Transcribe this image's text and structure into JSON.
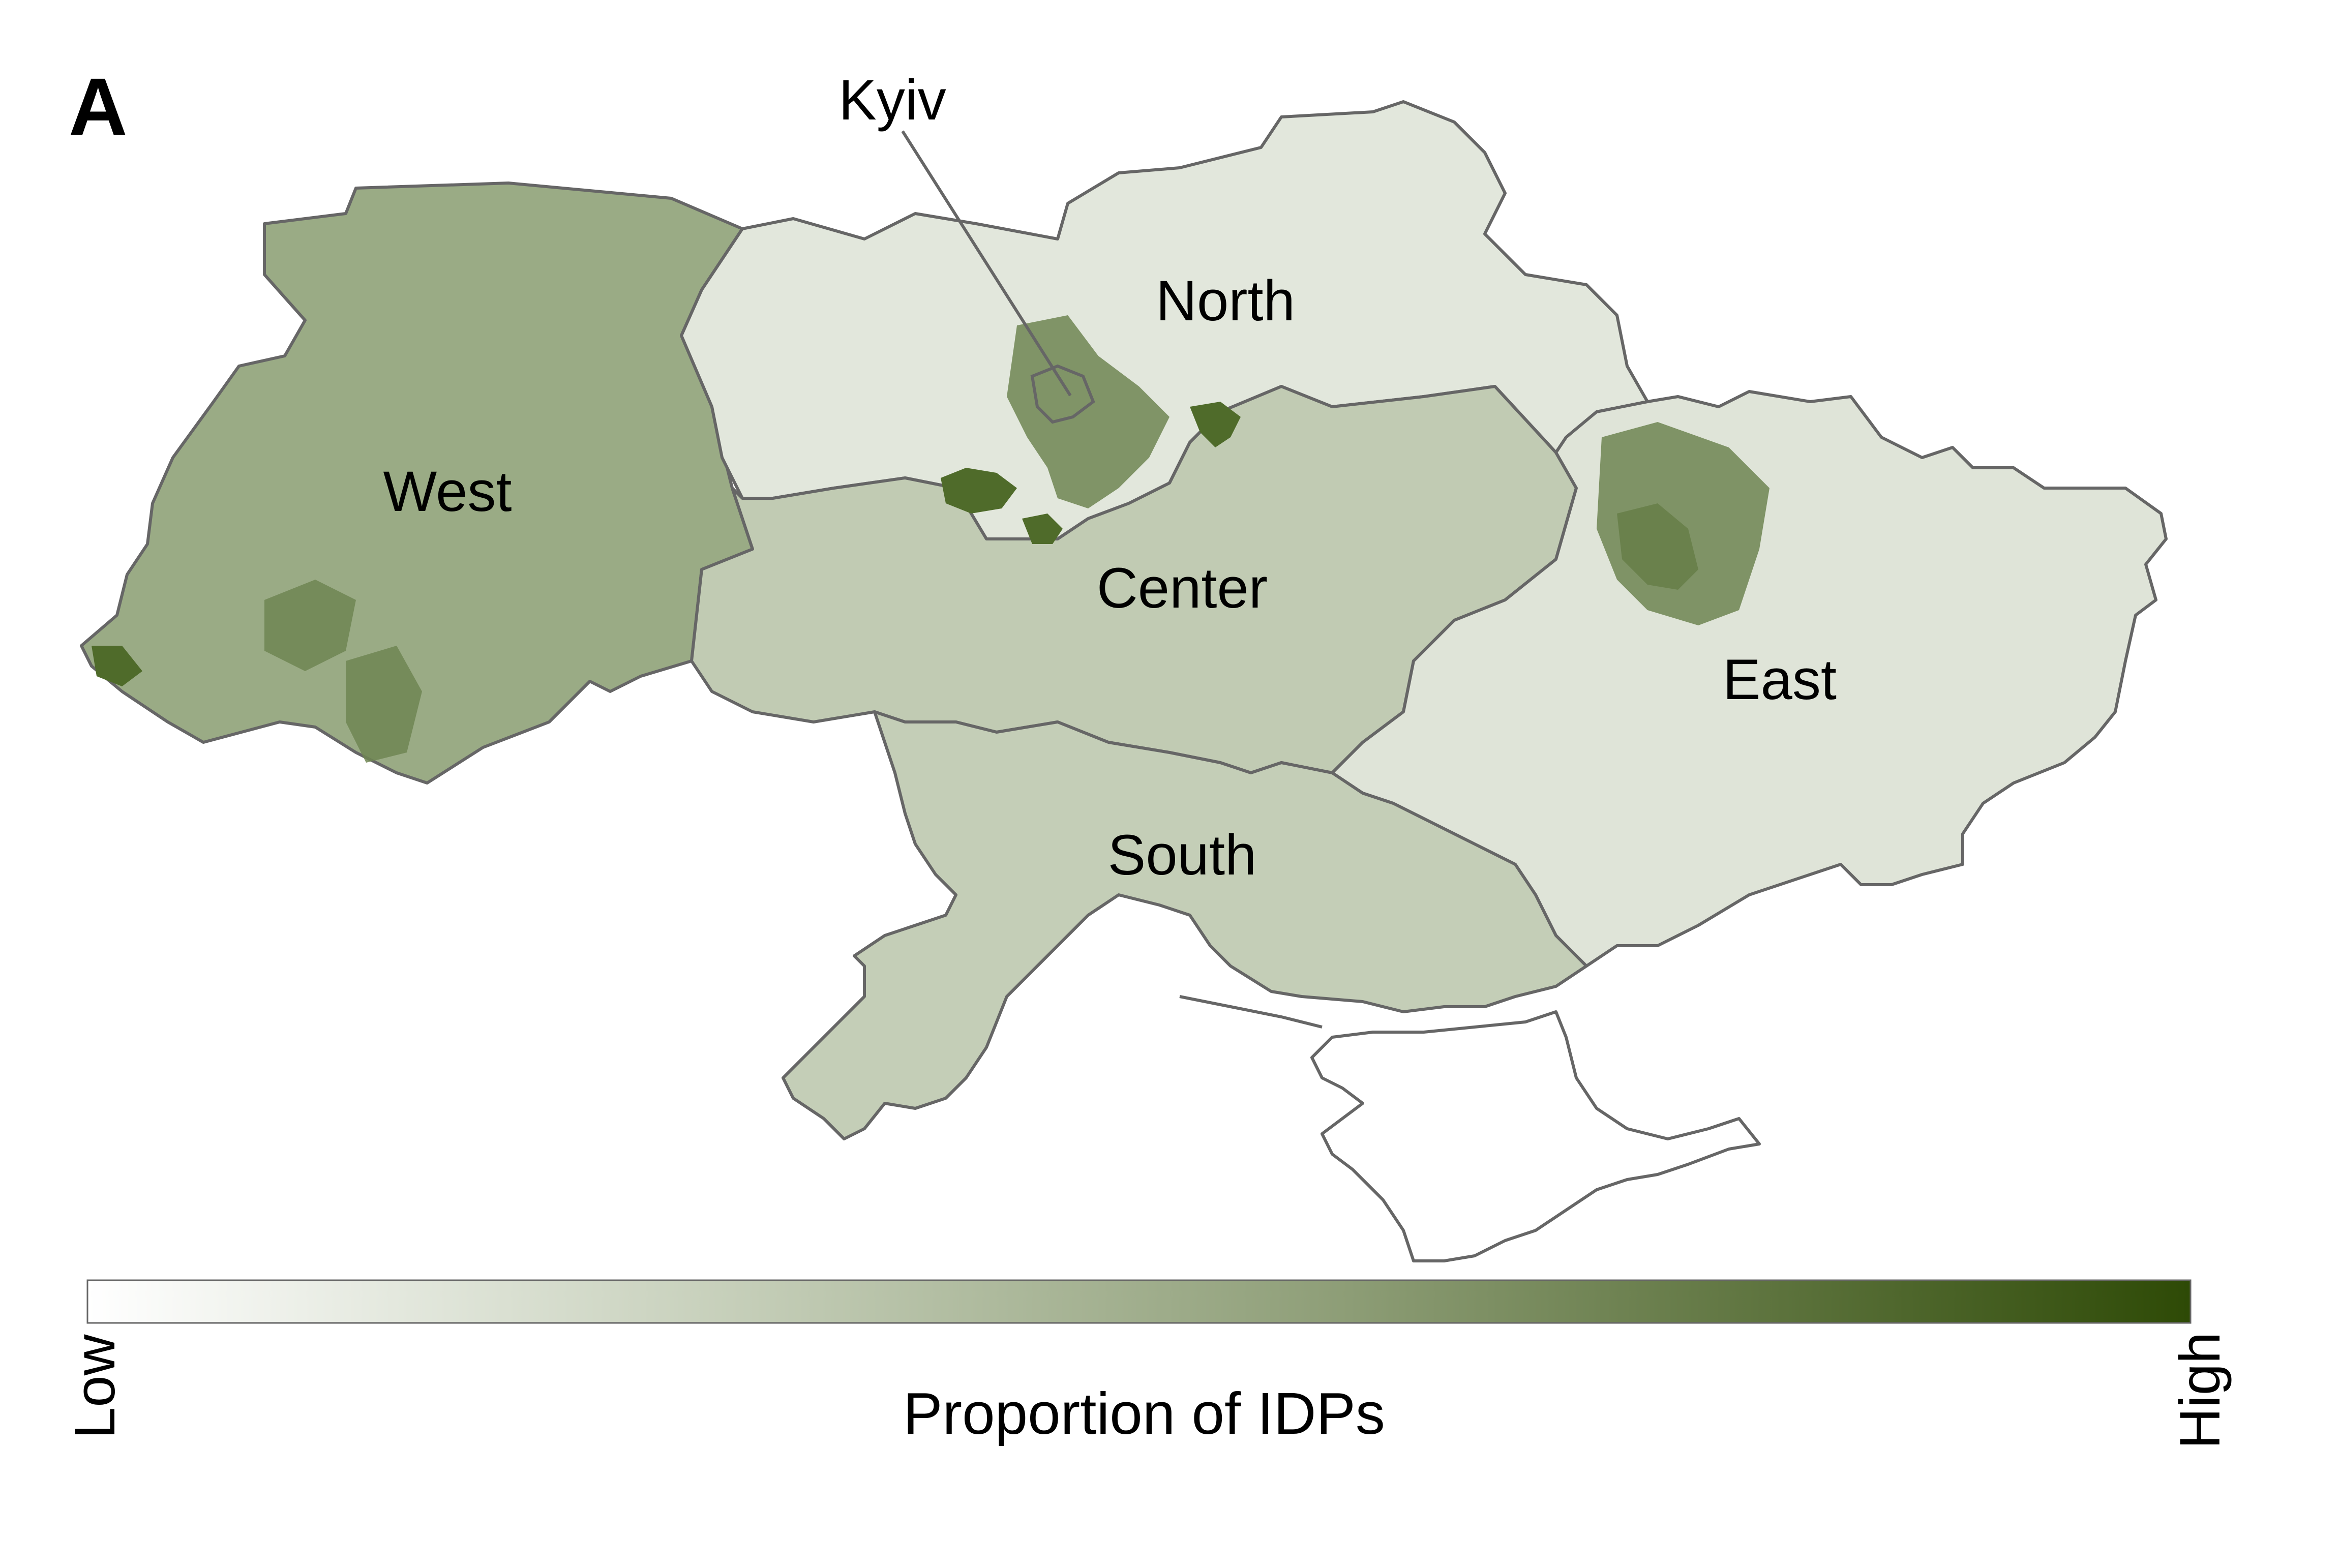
{
  "panel_label": "A",
  "regions": [
    {
      "label": "West",
      "level": 0.45,
      "color": "#9aab85"
    },
    {
      "label": "North",
      "level": 0.12,
      "color": "#e2e7dc"
    },
    {
      "label": "Center",
      "level": 0.3,
      "color": "#c1cbb3"
    },
    {
      "label": "East",
      "level": 0.15,
      "color": "#dfe4d8"
    },
    {
      "label": "South",
      "level": 0.28,
      "color": "#c4ceb7"
    }
  ],
  "city_label": "Kyiv",
  "legend": {
    "title": "Proportion of IDPs",
    "low_label": "Low",
    "high_label": "High",
    "color_low": "#ffffff",
    "color_high": "#2e4a06"
  },
  "colors": {
    "border": "#666666",
    "crimea_fill": "#ffffff",
    "hotspot": "#4f6b2a",
    "hotspot_mid": "#6f8552"
  }
}
